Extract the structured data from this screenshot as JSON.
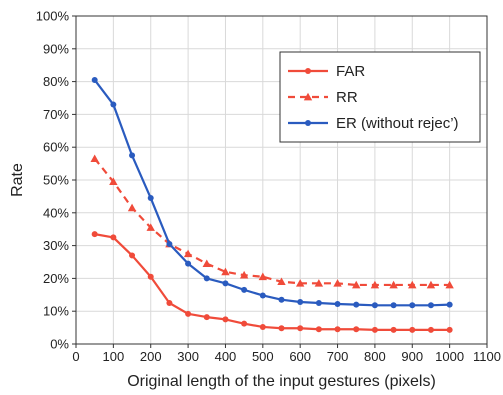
{
  "chart_data": {
    "type": "line",
    "xlabel": "Original length of the input gestures (pixels)",
    "ylabel": "Rate",
    "xlim": [
      0,
      1100
    ],
    "ylim": [
      0,
      100
    ],
    "xticks": [
      0,
      100,
      200,
      300,
      400,
      500,
      600,
      700,
      800,
      900,
      1000,
      1100
    ],
    "yticks": [
      0,
      10,
      20,
      30,
      40,
      50,
      60,
      70,
      80,
      90,
      100
    ],
    "xtick_labels": [
      "0",
      "100",
      "200",
      "300",
      "400",
      "500",
      "600",
      "700",
      "800",
      "900",
      "1000",
      "1100"
    ],
    "ytick_labels": [
      "0%",
      "10%",
      "20%",
      "30%",
      "40%",
      "50%",
      "60%",
      "70%",
      "80%",
      "90%",
      "100%"
    ],
    "grid": true,
    "legend_position": "top-right",
    "x": [
      50,
      100,
      150,
      200,
      250,
      300,
      350,
      400,
      450,
      500,
      550,
      600,
      650,
      700,
      750,
      800,
      850,
      900,
      950,
      1000
    ],
    "series": [
      {
        "name": "FAR",
        "color": "#f04b3a",
        "line_style": "solid",
        "marker": "circle",
        "values": [
          33.5,
          32.5,
          27,
          20.5,
          12.5,
          9.2,
          8.2,
          7.5,
          6.2,
          5.2,
          4.8,
          4.8,
          4.5,
          4.5,
          4.5,
          4.3,
          4.3,
          4.3,
          4.3,
          4.3
        ]
      },
      {
        "name": "RR",
        "color": "#f04b3a",
        "line_style": "dashed",
        "marker": "triangle",
        "values": [
          56.5,
          49.5,
          41.5,
          35.5,
          30.5,
          27.5,
          24.5,
          22,
          21,
          20.5,
          19,
          18.5,
          18.5,
          18.5,
          18,
          18,
          18,
          18,
          18,
          18
        ]
      },
      {
        "name": "ER (without rejec’)",
        "color": "#2a5bbf",
        "line_style": "solid",
        "marker": "circle",
        "values": [
          80.5,
          73,
          57.5,
          44.5,
          30.5,
          24.5,
          20,
          18.5,
          16.5,
          14.8,
          13.5,
          12.8,
          12.5,
          12.2,
          12,
          11.8,
          11.8,
          11.8,
          11.8,
          12
        ]
      }
    ]
  }
}
